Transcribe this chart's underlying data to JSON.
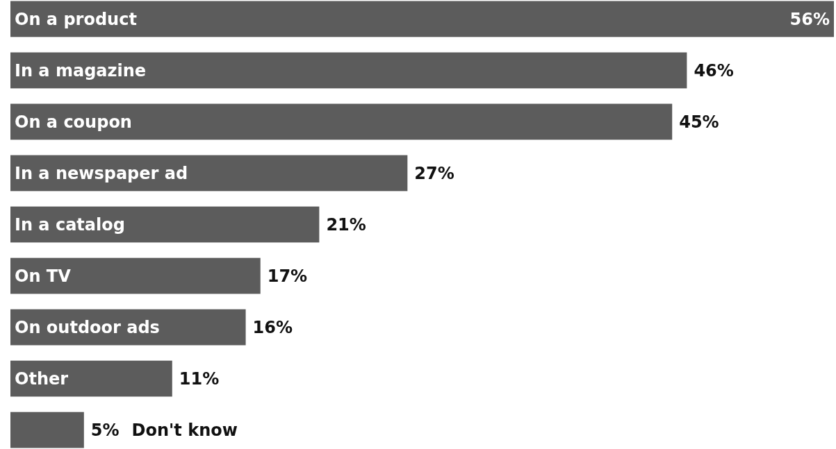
{
  "chart_data": {
    "type": "bar",
    "orientation": "horizontal",
    "categories": [
      "On a product",
      "In a magazine",
      "On a coupon",
      "In a newspaper ad",
      "In a catalog",
      "On TV",
      "On outdoor ads",
      "Other",
      "Don't know"
    ],
    "values": [
      56,
      46,
      45,
      27,
      21,
      17,
      16,
      11,
      5
    ],
    "value_labels": [
      "56%",
      "46%",
      "45%",
      "27%",
      "21%",
      "17%",
      "16%",
      "11%",
      "5%"
    ],
    "color": "#5c5c5c",
    "grid": false
  }
}
